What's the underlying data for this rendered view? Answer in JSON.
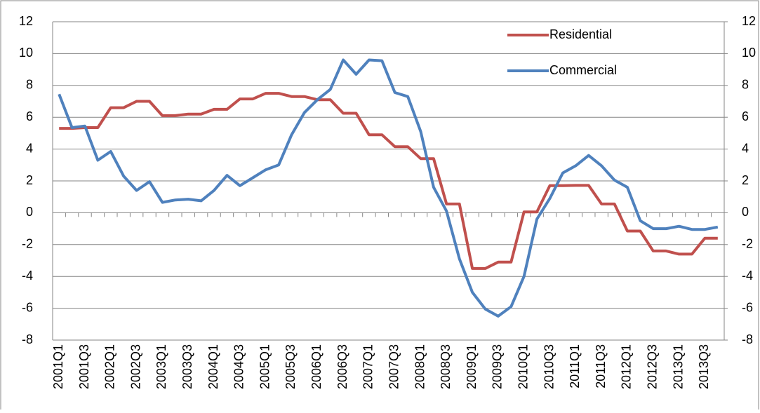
{
  "chart_data": {
    "type": "line",
    "categories": [
      "2001Q1",
      null,
      "2001Q3",
      null,
      "2002Q1",
      null,
      "2002Q3",
      null,
      "2003Q1",
      null,
      "2003Q3",
      null,
      "2004Q1",
      null,
      "2004Q3",
      null,
      "2005Q1",
      null,
      "2005Q3",
      null,
      "2006Q1",
      null,
      "2006Q3",
      null,
      "2007Q1",
      null,
      "2007Q3",
      null,
      "2008Q1",
      null,
      "2008Q3",
      null,
      "2009Q1",
      null,
      "2009Q3",
      null,
      "2010Q1",
      null,
      "2010Q3",
      null,
      "2011Q1",
      null,
      "2011Q3",
      null,
      "2012Q1",
      null,
      "2012Q3",
      null,
      "2013Q1",
      null,
      "2013Q3",
      null
    ],
    "series": [
      {
        "name": "Residential",
        "color": "#c0504d",
        "values": [
          5.3,
          5.3,
          5.35,
          5.35,
          6.6,
          6.6,
          7.0,
          7.0,
          6.1,
          6.1,
          6.2,
          6.2,
          6.5,
          6.5,
          7.15,
          7.15,
          7.5,
          7.5,
          7.3,
          7.3,
          7.1,
          7.1,
          6.25,
          6.25,
          4.9,
          4.9,
          4.15,
          4.15,
          3.4,
          3.4,
          0.55,
          0.55,
          -3.5,
          -3.5,
          -3.1,
          -3.1,
          0.05,
          0.05,
          1.7,
          1.7,
          1.72,
          1.72,
          0.55,
          0.55,
          -1.15,
          -1.15,
          -2.4,
          -2.4,
          -2.6,
          -2.6,
          -1.6,
          -1.6
        ]
      },
      {
        "name": "Commercial",
        "color": "#4f81bd",
        "values": [
          7.45,
          5.35,
          5.45,
          3.3,
          3.85,
          2.3,
          1.4,
          1.95,
          0.65,
          0.8,
          0.85,
          0.75,
          1.4,
          2.35,
          1.7,
          2.2,
          2.7,
          3.0,
          4.9,
          6.3,
          7.1,
          7.75,
          9.6,
          8.7,
          9.6,
          9.55,
          7.55,
          7.3,
          5.1,
          1.6,
          0.1,
          -2.9,
          -5.0,
          -6.05,
          -6.5,
          -5.9,
          -4.0,
          -0.4,
          0.9,
          2.5,
          2.95,
          3.6,
          2.95,
          2.05,
          1.6,
          -0.5,
          -1.0,
          -1.0,
          -0.85,
          -1.05,
          -1.05,
          -0.9
        ]
      }
    ],
    "ylim": [
      -8,
      12
    ],
    "yticks": [
      -8,
      -6,
      -4,
      -2,
      0,
      2,
      4,
      6,
      8,
      10,
      12
    ],
    "y2lim": [
      -8,
      12
    ],
    "y2ticks": [
      -8,
      -6,
      -4,
      -2,
      0,
      2,
      4,
      6,
      8,
      10,
      12
    ],
    "grid": true,
    "legend": "top-right"
  }
}
